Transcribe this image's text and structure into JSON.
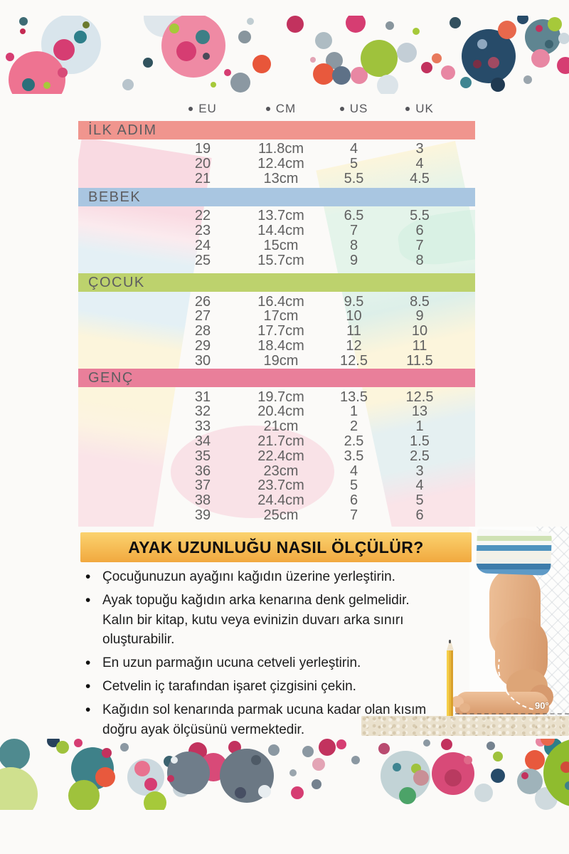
{
  "page": {
    "background": "#fbfaf8"
  },
  "size_table": {
    "columns": [
      {
        "label": "EU"
      },
      {
        "label": "CM"
      },
      {
        "label": "US"
      },
      {
        "label": "UK"
      }
    ],
    "text_color": "#606060",
    "sections": [
      {
        "label": "İLK ADIM",
        "color": "#f0958e",
        "rows": [
          [
            "19",
            "11.8cm",
            "4",
            "3"
          ],
          [
            "20",
            "12.4cm",
            "5",
            "4"
          ],
          [
            "21",
            "13cm",
            "5.5",
            "4.5"
          ]
        ]
      },
      {
        "label": "BEBEK",
        "color": "#a9c6e1",
        "rows": [
          [
            "22",
            "13.7cm",
            "6.5",
            "5.5"
          ],
          [
            "23",
            "14.4cm",
            "7",
            "6"
          ],
          [
            "24",
            "15cm",
            "8",
            "7"
          ],
          [
            "25",
            "15.7cm",
            "9",
            "8"
          ]
        ]
      },
      {
        "label": "ÇOCUK",
        "color": "#bdd26d",
        "rows": [
          [
            "26",
            "16.4cm",
            "9.5",
            "8.5"
          ],
          [
            "27",
            "17cm",
            "10",
            "9"
          ],
          [
            "28",
            "17.7cm",
            "11",
            "10"
          ],
          [
            "29",
            "18.4cm",
            "12",
            "11"
          ],
          [
            "30",
            "19cm",
            "12.5",
            "11.5"
          ]
        ]
      },
      {
        "label": "GENÇ",
        "color": "#e97f9a",
        "rows": [
          [
            "31",
            "19.7cm",
            "13.5",
            "12.5"
          ],
          [
            "32",
            "20.4cm",
            "1",
            "13"
          ],
          [
            "33",
            "21cm",
            "2",
            "1"
          ],
          [
            "34",
            "21.7cm",
            "2.5",
            "1.5"
          ],
          [
            "35",
            "22.4cm",
            "3.5",
            "2.5"
          ],
          [
            "36",
            "23cm",
            "4",
            "3"
          ],
          [
            "37",
            "23.7cm",
            "5",
            "4"
          ],
          [
            "38",
            "24.4cm",
            "6",
            "5"
          ],
          [
            "39",
            "25cm",
            "7",
            "6"
          ]
        ]
      }
    ]
  },
  "measure_guide": {
    "title": "AYAK UZUNLUĞU NASIL ÖLÇÜLÜR?",
    "title_bg": "#f6c161",
    "bullets": [
      "Çocuğunuzun ayağını kağıdın üzerine yerleştirin.",
      "Ayak topuğu kağıdın arka kenarına denk gelmelidir. Kalın bir kitap, kutu veya evinizin duvarı arka sınırı oluşturabilir.",
      "En uzun parmağın ucuna cetveli yerleştirin.",
      "Cetvelin iç tarafından işaret çizgisini çekin.",
      "Kağıdın sol kenarında parmak ucuna kadar olan kısım doğru ayak ölçüsünü vermektedir."
    ],
    "photo": {
      "angle_label": "90°"
    }
  }
}
